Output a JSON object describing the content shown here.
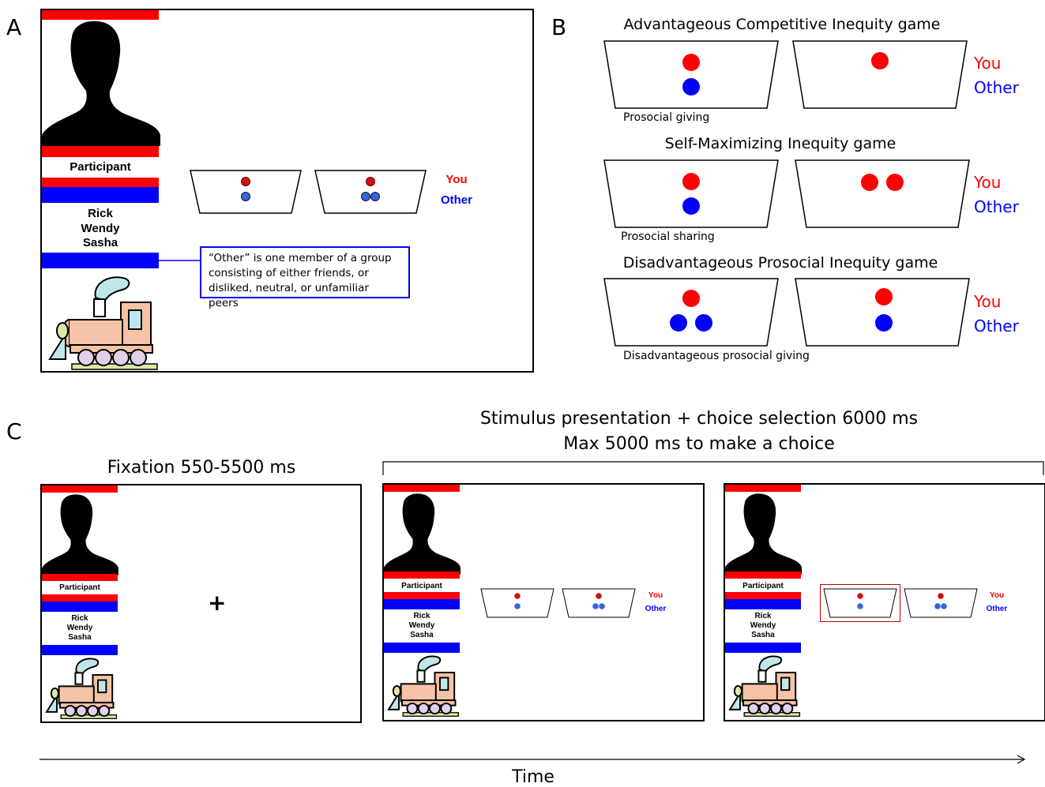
{
  "panels": {
    "a": "A",
    "b": "B",
    "c": "C"
  },
  "participant_card": {
    "participant_label": "Participant",
    "group_names": [
      "Rick",
      "Wendy",
      "Sasha"
    ]
  },
  "legend": {
    "you": "You",
    "other": "Other"
  },
  "callout_text": "“Other” is one member of a group consisting of either friends, or disliked, neutral, or unfamiliar peers",
  "games": [
    {
      "title": "Advantageous Competitive Inequity game",
      "option_note": "Prosocial giving",
      "left_tray": {
        "you": 1,
        "other": 1
      },
      "right_tray": {
        "you": 1,
        "other": 0
      }
    },
    {
      "title": "Self-Maximizing Inequity game",
      "option_note": "Prosocial sharing",
      "left_tray": {
        "you": 1,
        "other": 1
      },
      "right_tray": {
        "you": 2,
        "other": 0
      }
    },
    {
      "title": "Disadvantageous Prosocial Inequity game",
      "option_note": "Disadvantageous prosocial giving",
      "left_tray": {
        "you": 1,
        "other": 2
      },
      "right_tray": {
        "you": 1,
        "other": 1
      }
    }
  ],
  "timeline": {
    "fixation_label": "Fixation 550-5500 ms",
    "stimulus_label_1": "Stimulus presentation + choice selection 6000 ms",
    "stimulus_label_2": "Max 5000 ms to make a choice",
    "fixation_symbol": "+",
    "time_axis_label": "Time"
  },
  "colors": {
    "you": "#ff0000",
    "other": "#0000ff",
    "selection_box": "#c00000"
  }
}
